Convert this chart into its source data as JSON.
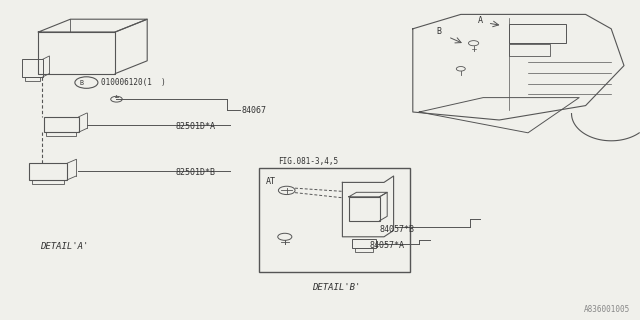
{
  "bg_color": "#f0f0eb",
  "line_color": "#555555",
  "text_color": "#333333",
  "ref_color": "#888888",
  "part_number_ref": "A836001005",
  "label_84067": "84067",
  "label_82501A": "82501D*A",
  "label_82501B": "82501D*B",
  "label_b_conn": "010006120(1  )",
  "label_detail_a": "DETAIL'A'",
  "label_fig": "FIG.081-3,4,5",
  "label_at": "AT",
  "label_84057a": "84057*A",
  "label_84057b": "84057*B",
  "label_detail_b": "DETAIL'B'",
  "label_A": "A",
  "label_B": "B"
}
